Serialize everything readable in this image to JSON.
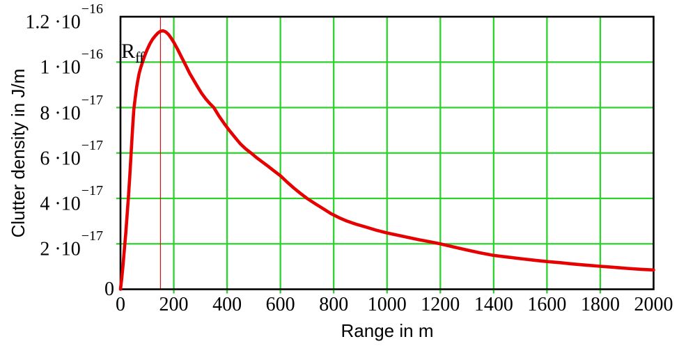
{
  "chart_data": {
    "type": "line",
    "title": "",
    "xlabel": "Range in m",
    "ylabel": "Clutter density in J/m",
    "x_unit": "m",
    "y_unit": "J/m",
    "xlim": [
      0,
      2000
    ],
    "ylim": [
      0,
      1.2e-16
    ],
    "grid": true,
    "legend": "none",
    "series_name": "clutter-density",
    "y_scale": 1e-17,
    "x": [
      0,
      5,
      10,
      15,
      20,
      25,
      30,
      35,
      40,
      45,
      50,
      55,
      60,
      65,
      70,
      75,
      80,
      90,
      100,
      110,
      120,
      130,
      140,
      150,
      160,
      170,
      180,
      190,
      200,
      215,
      230,
      245,
      260,
      275,
      290,
      305,
      320,
      335,
      350,
      370,
      390,
      410,
      430,
      450,
      470,
      490,
      510,
      530,
      550,
      575,
      600,
      625,
      650,
      675,
      700,
      730,
      760,
      790,
      820,
      850,
      885,
      920,
      960,
      1000,
      1040,
      1080,
      1120,
      1160,
      1200,
      1250,
      1300,
      1350,
      1400,
      1450,
      1500,
      1550,
      1600,
      1650,
      1700,
      1750,
      1800,
      1850,
      1900,
      1950,
      2000
    ],
    "y": [
      0,
      0.5,
      1.1,
      1.8,
      2.5,
      3.3,
      4.1,
      5.0,
      6.0,
      7.0,
      7.9,
      8.4,
      8.85,
      9.2,
      9.5,
      9.72,
      9.9,
      10.25,
      10.55,
      10.8,
      11.0,
      11.15,
      11.28,
      11.36,
      11.38,
      11.33,
      11.22,
      11.06,
      10.87,
      10.55,
      10.2,
      9.85,
      9.5,
      9.2,
      8.9,
      8.62,
      8.38,
      8.18,
      8.0,
      7.62,
      7.28,
      6.97,
      6.68,
      6.4,
      6.18,
      6.0,
      5.8,
      5.62,
      5.45,
      5.22,
      5.0,
      4.72,
      4.46,
      4.22,
      4.0,
      3.77,
      3.55,
      3.33,
      3.15,
      3.0,
      2.86,
      2.74,
      2.6,
      2.48,
      2.38,
      2.28,
      2.18,
      2.09,
      2.0,
      1.86,
      1.73,
      1.6,
      1.49,
      1.42,
      1.35,
      1.28,
      1.22,
      1.17,
      1.11,
      1.06,
      1.01,
      0.97,
      0.92,
      0.88,
      0.85
    ],
    "annotations": [
      {
        "type": "vline",
        "x": 150,
        "label": "Rff"
      }
    ]
  },
  "axes": {
    "y_ticks": [
      {
        "v": 1.2e-16,
        "base": "1.2 ·10",
        "sup": "−16"
      },
      {
        "v": 1e-16,
        "base": "1 ·10",
        "sup": "−16"
      },
      {
        "v": 8e-17,
        "base": "8 ·10",
        "sup": "−17"
      },
      {
        "v": 6e-17,
        "base": "6 ·10",
        "sup": "−17"
      },
      {
        "v": 4e-17,
        "base": "4 ·10",
        "sup": "−17"
      },
      {
        "v": 2e-17,
        "base": "2 ·10",
        "sup": "−17"
      },
      {
        "v": 0,
        "base": "0",
        "sup": ""
      }
    ],
    "x_ticks": [
      {
        "v": 0,
        "label": "0"
      },
      {
        "v": 200,
        "label": "200"
      },
      {
        "v": 400,
        "label": "400"
      },
      {
        "v": 600,
        "label": "600"
      },
      {
        "v": 800,
        "label": "800"
      },
      {
        "v": 1000,
        "label": "1000"
      },
      {
        "v": 1200,
        "label": "1200"
      },
      {
        "v": 1400,
        "label": "1400"
      },
      {
        "v": 1600,
        "label": "1600"
      },
      {
        "v": 1800,
        "label": "1800"
      },
      {
        "v": 2000,
        "label": "2000"
      }
    ]
  },
  "marker": {
    "x": 150,
    "label_base": "R",
    "label_sub": "ff"
  },
  "colors": {
    "background": "#ffffff",
    "grid": "#2bd32b",
    "curve": "#e60000",
    "marker_line": "#cc1414",
    "border": "#000000",
    "text": "#000000"
  }
}
